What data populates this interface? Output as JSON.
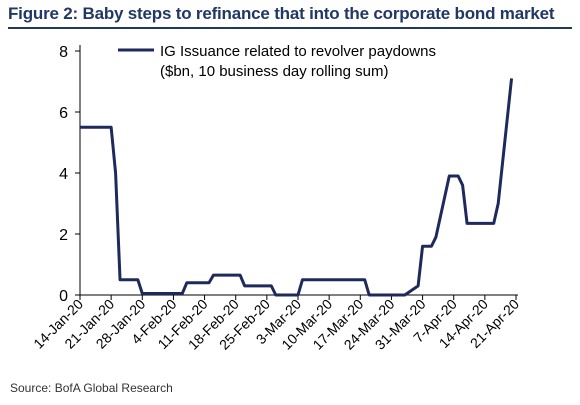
{
  "figure_title": "Figure 2: Baby steps to refinance that into the corporate bond market",
  "source": "Source: BofA Global Research",
  "colors": {
    "title": "#1f3864",
    "series": "#1f2a5c",
    "axis": "#000000"
  },
  "chart_data": {
    "type": "line",
    "title": "",
    "xlabel": "",
    "ylabel": "",
    "ylim": [
      0,
      8
    ],
    "yticks": [
      0,
      2,
      4,
      6,
      8
    ],
    "grid": false,
    "legend": "top-left",
    "x_start": "14-Jan-20",
    "xtick_labels": [
      "14-Jan-20",
      "21-Jan-20",
      "28-Jan-20",
      "4-Feb-20",
      "11-Feb-20",
      "18-Feb-20",
      "25-Feb-20",
      "3-Mar-20",
      "10-Mar-20",
      "17-Mar-20",
      "24-Mar-20",
      "31-Mar-20",
      "7-Apr-20",
      "14-Apr-20",
      "21-Apr-20"
    ],
    "series": [
      {
        "name": "IG Issuance related to revolver paydowns",
        "name_line2": "($bn, 10 business day rolling sum)",
        "color": "#1f2a5c",
        "points": [
          [
            "14-Jan-20",
            5.5
          ],
          [
            "15-Jan-20",
            5.5
          ],
          [
            "16-Jan-20",
            5.5
          ],
          [
            "17-Jan-20",
            5.5
          ],
          [
            "20-Jan-20",
            5.5
          ],
          [
            "21-Jan-20",
            5.5
          ],
          [
            "22-Jan-20",
            4.0
          ],
          [
            "23-Jan-20",
            0.5
          ],
          [
            "24-Jan-20",
            0.5
          ],
          [
            "27-Jan-20",
            0.5
          ],
          [
            "28-Jan-20",
            0.05
          ],
          [
            "29-Jan-20",
            0.05
          ],
          [
            "30-Jan-20",
            0.05
          ],
          [
            "31-Jan-20",
            0.05
          ],
          [
            "3-Feb-20",
            0.05
          ],
          [
            "4-Feb-20",
            0.05
          ],
          [
            "5-Feb-20",
            0.05
          ],
          [
            "6-Feb-20",
            0.05
          ],
          [
            "7-Feb-20",
            0.4
          ],
          [
            "10-Feb-20",
            0.4
          ],
          [
            "11-Feb-20",
            0.4
          ],
          [
            "12-Feb-20",
            0.4
          ],
          [
            "13-Feb-20",
            0.65
          ],
          [
            "14-Feb-20",
            0.65
          ],
          [
            "17-Feb-20",
            0.65
          ],
          [
            "18-Feb-20",
            0.65
          ],
          [
            "19-Feb-20",
            0.65
          ],
          [
            "20-Feb-20",
            0.3
          ],
          [
            "21-Feb-20",
            0.3
          ],
          [
            "24-Feb-20",
            0.3
          ],
          [
            "25-Feb-20",
            0.3
          ],
          [
            "26-Feb-20",
            0.3
          ],
          [
            "27-Feb-20",
            0.0
          ],
          [
            "28-Feb-20",
            0.0
          ],
          [
            "2-Mar-20",
            0.0
          ],
          [
            "3-Mar-20",
            0.0
          ],
          [
            "4-Mar-20",
            0.5
          ],
          [
            "5-Mar-20",
            0.5
          ],
          [
            "6-Mar-20",
            0.5
          ],
          [
            "9-Mar-20",
            0.5
          ],
          [
            "10-Mar-20",
            0.5
          ],
          [
            "11-Mar-20",
            0.5
          ],
          [
            "12-Mar-20",
            0.5
          ],
          [
            "13-Mar-20",
            0.5
          ],
          [
            "16-Mar-20",
            0.5
          ],
          [
            "17-Mar-20",
            0.5
          ],
          [
            "18-Mar-20",
            0.5
          ],
          [
            "19-Mar-20",
            0.0
          ],
          [
            "20-Mar-20",
            0.0
          ],
          [
            "23-Mar-20",
            0.0
          ],
          [
            "24-Mar-20",
            0.0
          ],
          [
            "25-Mar-20",
            0.0
          ],
          [
            "26-Mar-20",
            0.0
          ],
          [
            "27-Mar-20",
            0.0
          ],
          [
            "30-Mar-20",
            0.3
          ],
          [
            "31-Mar-20",
            1.6
          ],
          [
            "1-Apr-20",
            1.6
          ],
          [
            "2-Apr-20",
            1.6
          ],
          [
            "3-Apr-20",
            1.9
          ],
          [
            "6-Apr-20",
            3.9
          ],
          [
            "7-Apr-20",
            3.9
          ],
          [
            "8-Apr-20",
            3.9
          ],
          [
            "9-Apr-20",
            3.6
          ],
          [
            "10-Apr-20",
            2.35
          ],
          [
            "13-Apr-20",
            2.35
          ],
          [
            "14-Apr-20",
            2.35
          ],
          [
            "15-Apr-20",
            2.35
          ],
          [
            "16-Apr-20",
            2.35
          ],
          [
            "17-Apr-20",
            3.0
          ],
          [
            "20-Apr-20",
            7.1
          ]
        ]
      }
    ]
  }
}
